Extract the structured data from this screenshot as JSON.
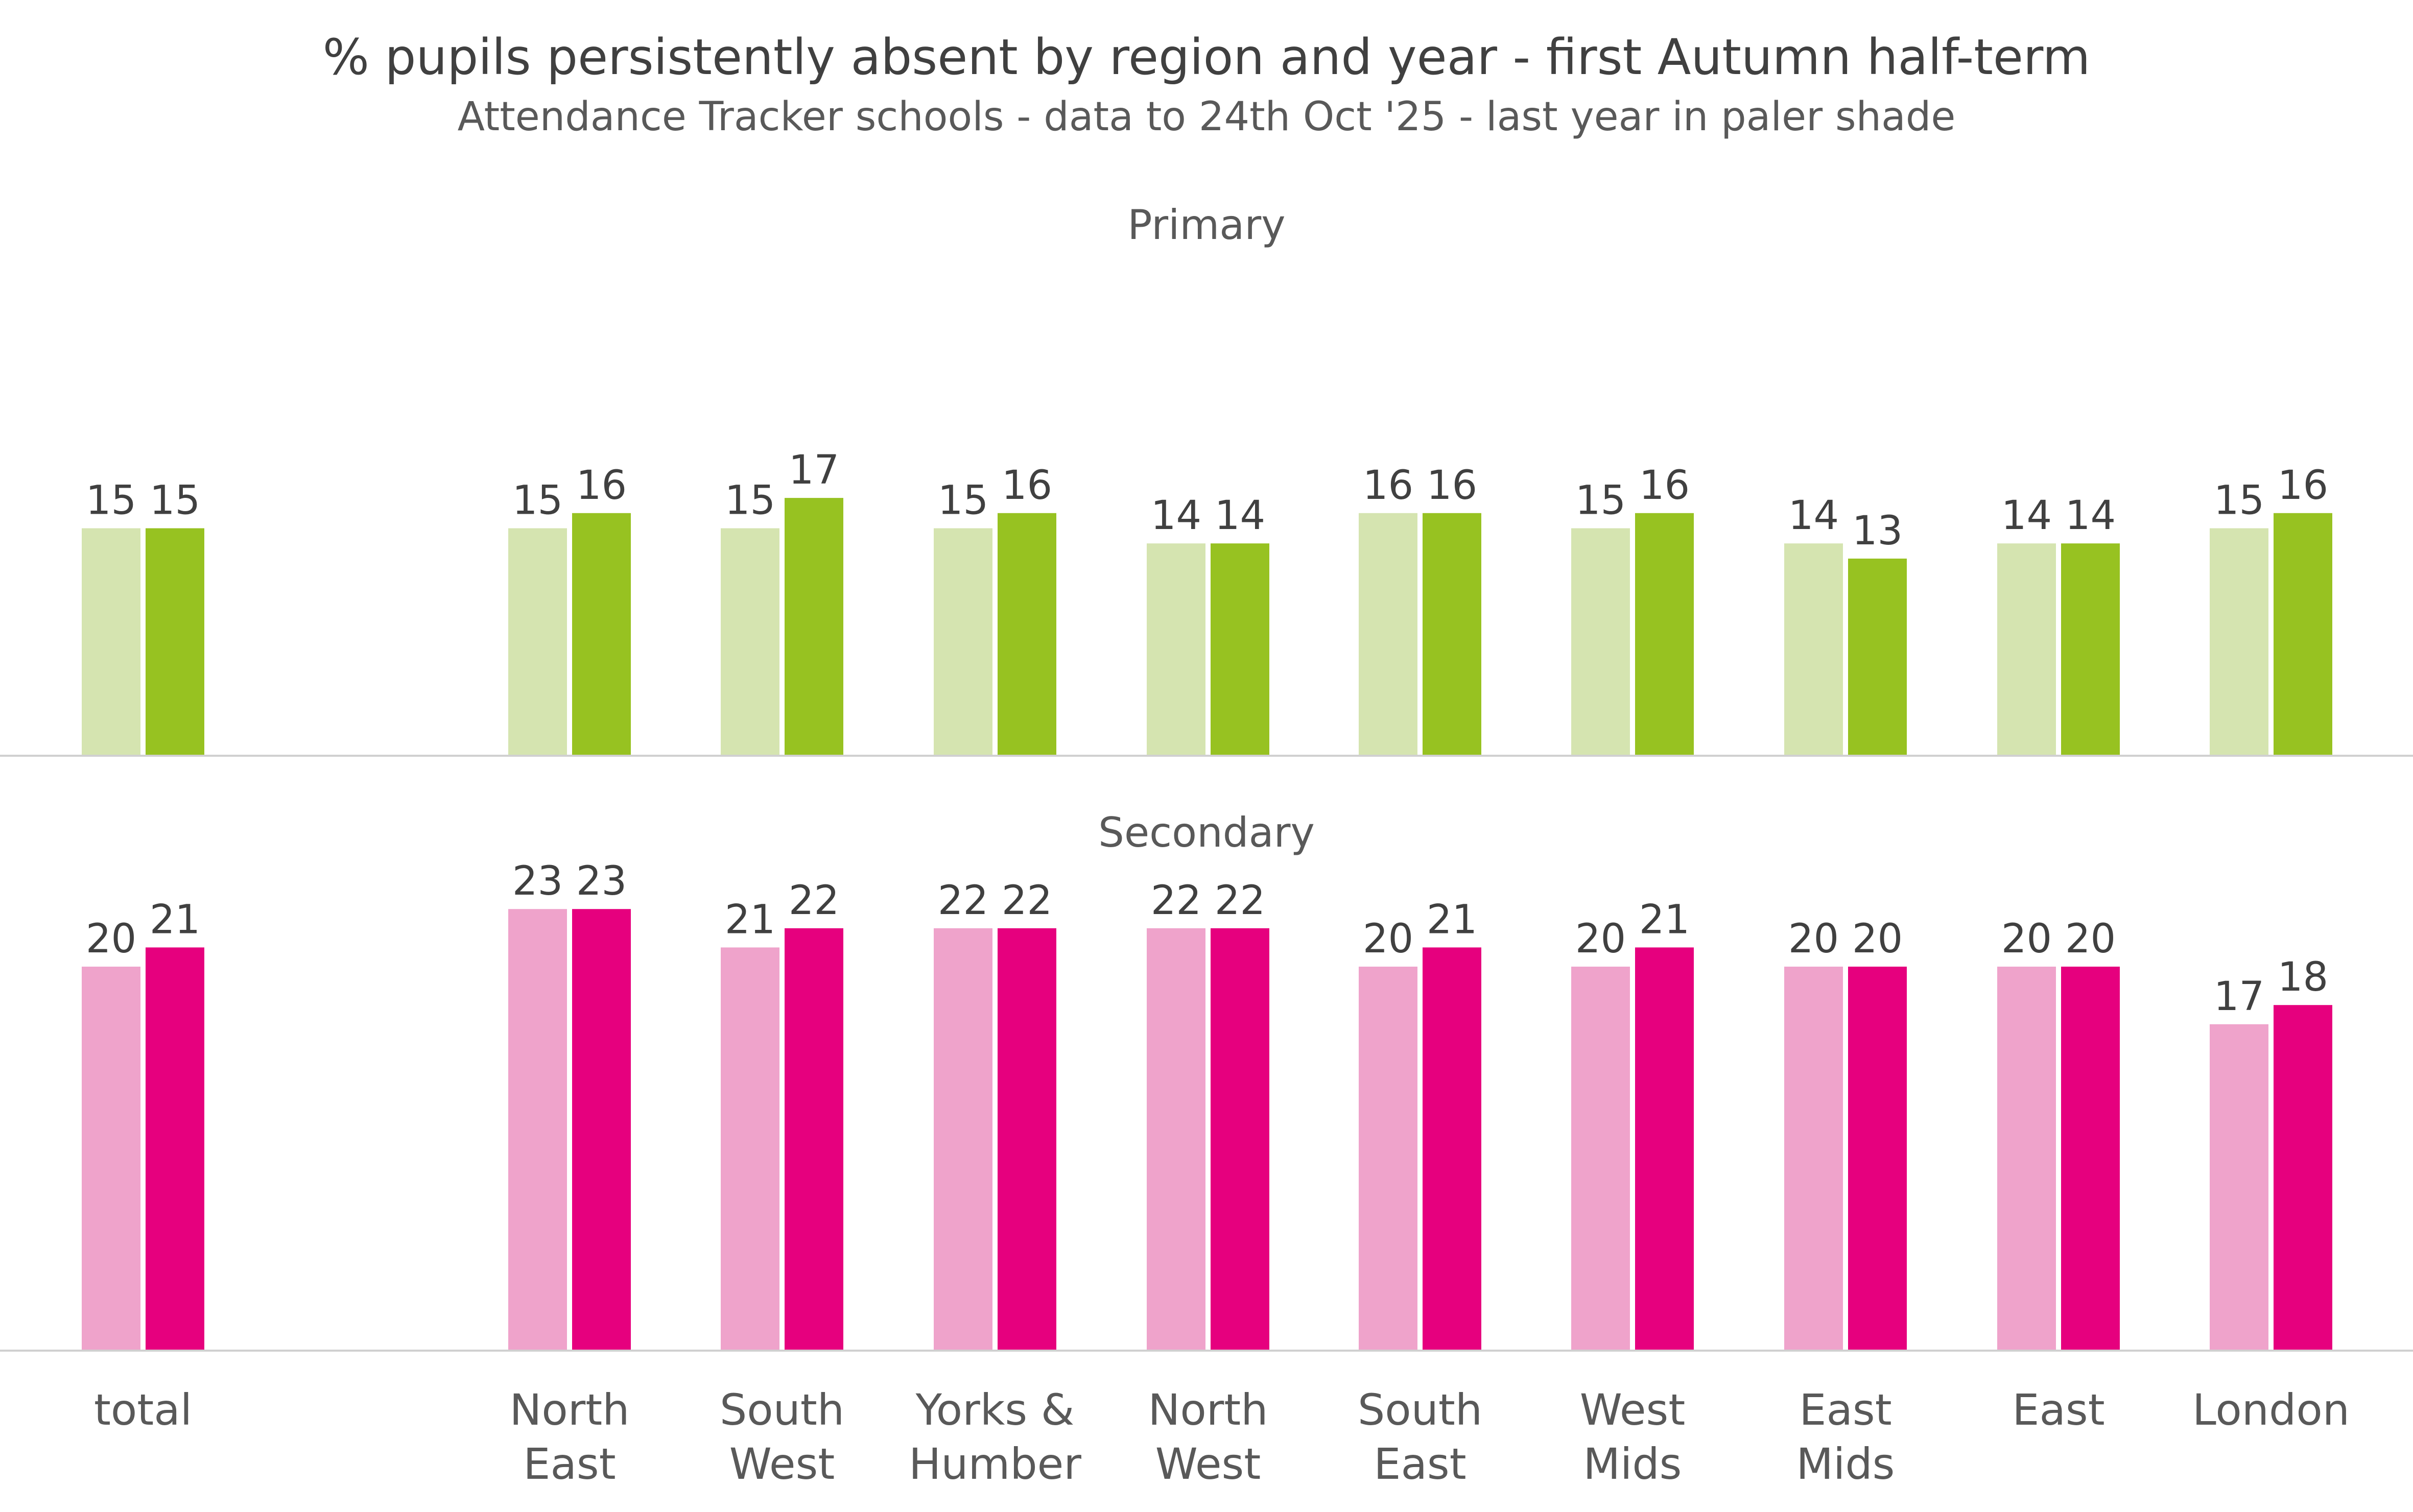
{
  "chart_data": {
    "type": "bar",
    "title": "% pupils persistently absent by region and year - first Autumn half-term",
    "subtitle": "Attendance Tracker schools - data to 24th Oct '25 - last year in paler shade",
    "categories": [
      [
        "total"
      ],
      [
        "North",
        "East"
      ],
      [
        "South",
        "West"
      ],
      [
        "Yorks &",
        "Humber"
      ],
      [
        "North",
        "West"
      ],
      [
        "South",
        "East"
      ],
      [
        "West",
        "Mids"
      ],
      [
        "East",
        "Mids"
      ],
      [
        "East"
      ],
      [
        "London"
      ]
    ],
    "panels": [
      {
        "name": "Primary",
        "ylim": [
          0,
          30
        ],
        "series": [
          {
            "name": "last year",
            "color": "#d5e4b0",
            "values": [
              15,
              15,
              15,
              15,
              14,
              16,
              15,
              14,
              14,
              15
            ]
          },
          {
            "name": "this year",
            "color": "#97c221",
            "values": [
              15,
              16,
              17,
              16,
              14,
              16,
              16,
              13,
              14,
              16
            ]
          }
        ]
      },
      {
        "name": "Secondary",
        "ylim": [
          0,
          30
        ],
        "series": [
          {
            "name": "last year",
            "color": "#efa3cb",
            "values": [
              20,
              23,
              21,
              22,
              22,
              20,
              20,
              20,
              20,
              17
            ]
          },
          {
            "name": "this year",
            "color": "#e6007e",
            "values": [
              21,
              23,
              22,
              22,
              22,
              21,
              21,
              20,
              20,
              18
            ]
          }
        ]
      }
    ]
  }
}
